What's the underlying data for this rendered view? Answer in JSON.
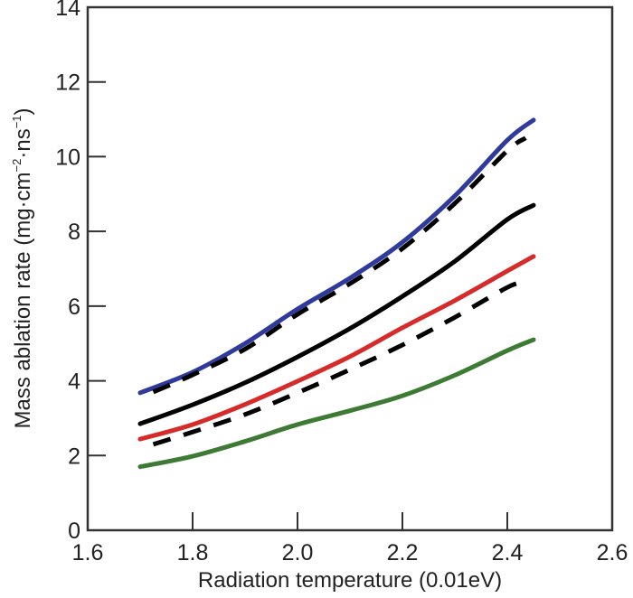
{
  "chart_data": {
    "type": "line",
    "title": "",
    "xlabel": "Radiation temperature (0.01eV)",
    "ylabel": {
      "main": "Mass ablation rate (mg·cm",
      "exp1": "−2",
      "mid": "·ns",
      "exp2": "−1",
      "end": ")"
    },
    "xlim": [
      1.6,
      2.6
    ],
    "ylim": [
      0,
      14
    ],
    "xticks": [
      1.6,
      1.8,
      2.0,
      2.2,
      2.4,
      2.6
    ],
    "xtick_labels": [
      "1.6",
      "1.8",
      "2.0",
      "2.2",
      "2.4",
      "2.6"
    ],
    "yticks": [
      0,
      2,
      4,
      6,
      8,
      10,
      12,
      14
    ],
    "ytick_labels": [
      "0",
      "2",
      "4",
      "6",
      "8",
      "10",
      "12",
      "14"
    ],
    "grid": false,
    "legend": "none",
    "series": [
      {
        "name": "blue-solid",
        "color": "#2f3b9c",
        "style": "solid",
        "x": [
          1.7,
          1.8,
          1.9,
          2.0,
          2.1,
          2.2,
          2.3,
          2.4,
          2.45
        ],
        "y": [
          3.68,
          4.23,
          5.0,
          5.92,
          6.75,
          7.71,
          8.95,
          10.44,
          10.98
        ]
      },
      {
        "name": "black-dashed-upper",
        "color": "#000000",
        "style": "dashed",
        "x": [
          1.725,
          1.8,
          1.9,
          2.0,
          2.1,
          2.2,
          2.3,
          2.4,
          2.435
        ],
        "y": [
          3.7,
          4.16,
          4.85,
          5.78,
          6.6,
          7.54,
          8.75,
          10.16,
          10.5
        ]
      },
      {
        "name": "black-solid",
        "color": "#000000",
        "style": "solid",
        "x": [
          1.7,
          1.8,
          1.9,
          2.0,
          2.1,
          2.2,
          2.3,
          2.4,
          2.45
        ],
        "y": [
          2.85,
          3.36,
          3.95,
          4.64,
          5.4,
          6.26,
          7.2,
          8.32,
          8.7
        ]
      },
      {
        "name": "red-solid",
        "color": "#d62b2b",
        "style": "solid",
        "x": [
          1.7,
          1.8,
          1.9,
          2.0,
          2.1,
          2.2,
          2.3,
          2.4,
          2.45
        ],
        "y": [
          2.44,
          2.83,
          3.37,
          3.99,
          4.65,
          5.42,
          6.15,
          6.94,
          7.33
        ]
      },
      {
        "name": "black-dashed-lower",
        "color": "#000000",
        "style": "dashed",
        "x": [
          1.725,
          1.8,
          1.9,
          2.0,
          2.1,
          2.2,
          2.3,
          2.4,
          2.435
        ],
        "y": [
          2.3,
          2.63,
          3.1,
          3.68,
          4.3,
          4.96,
          5.7,
          6.5,
          6.65
        ]
      },
      {
        "name": "green-solid",
        "color": "#3d7a33",
        "style": "solid",
        "x": [
          1.7,
          1.8,
          1.9,
          2.0,
          2.1,
          2.2,
          2.3,
          2.4,
          2.45
        ],
        "y": [
          1.7,
          1.98,
          2.38,
          2.83,
          3.2,
          3.6,
          4.15,
          4.81,
          5.1
        ]
      }
    ]
  }
}
